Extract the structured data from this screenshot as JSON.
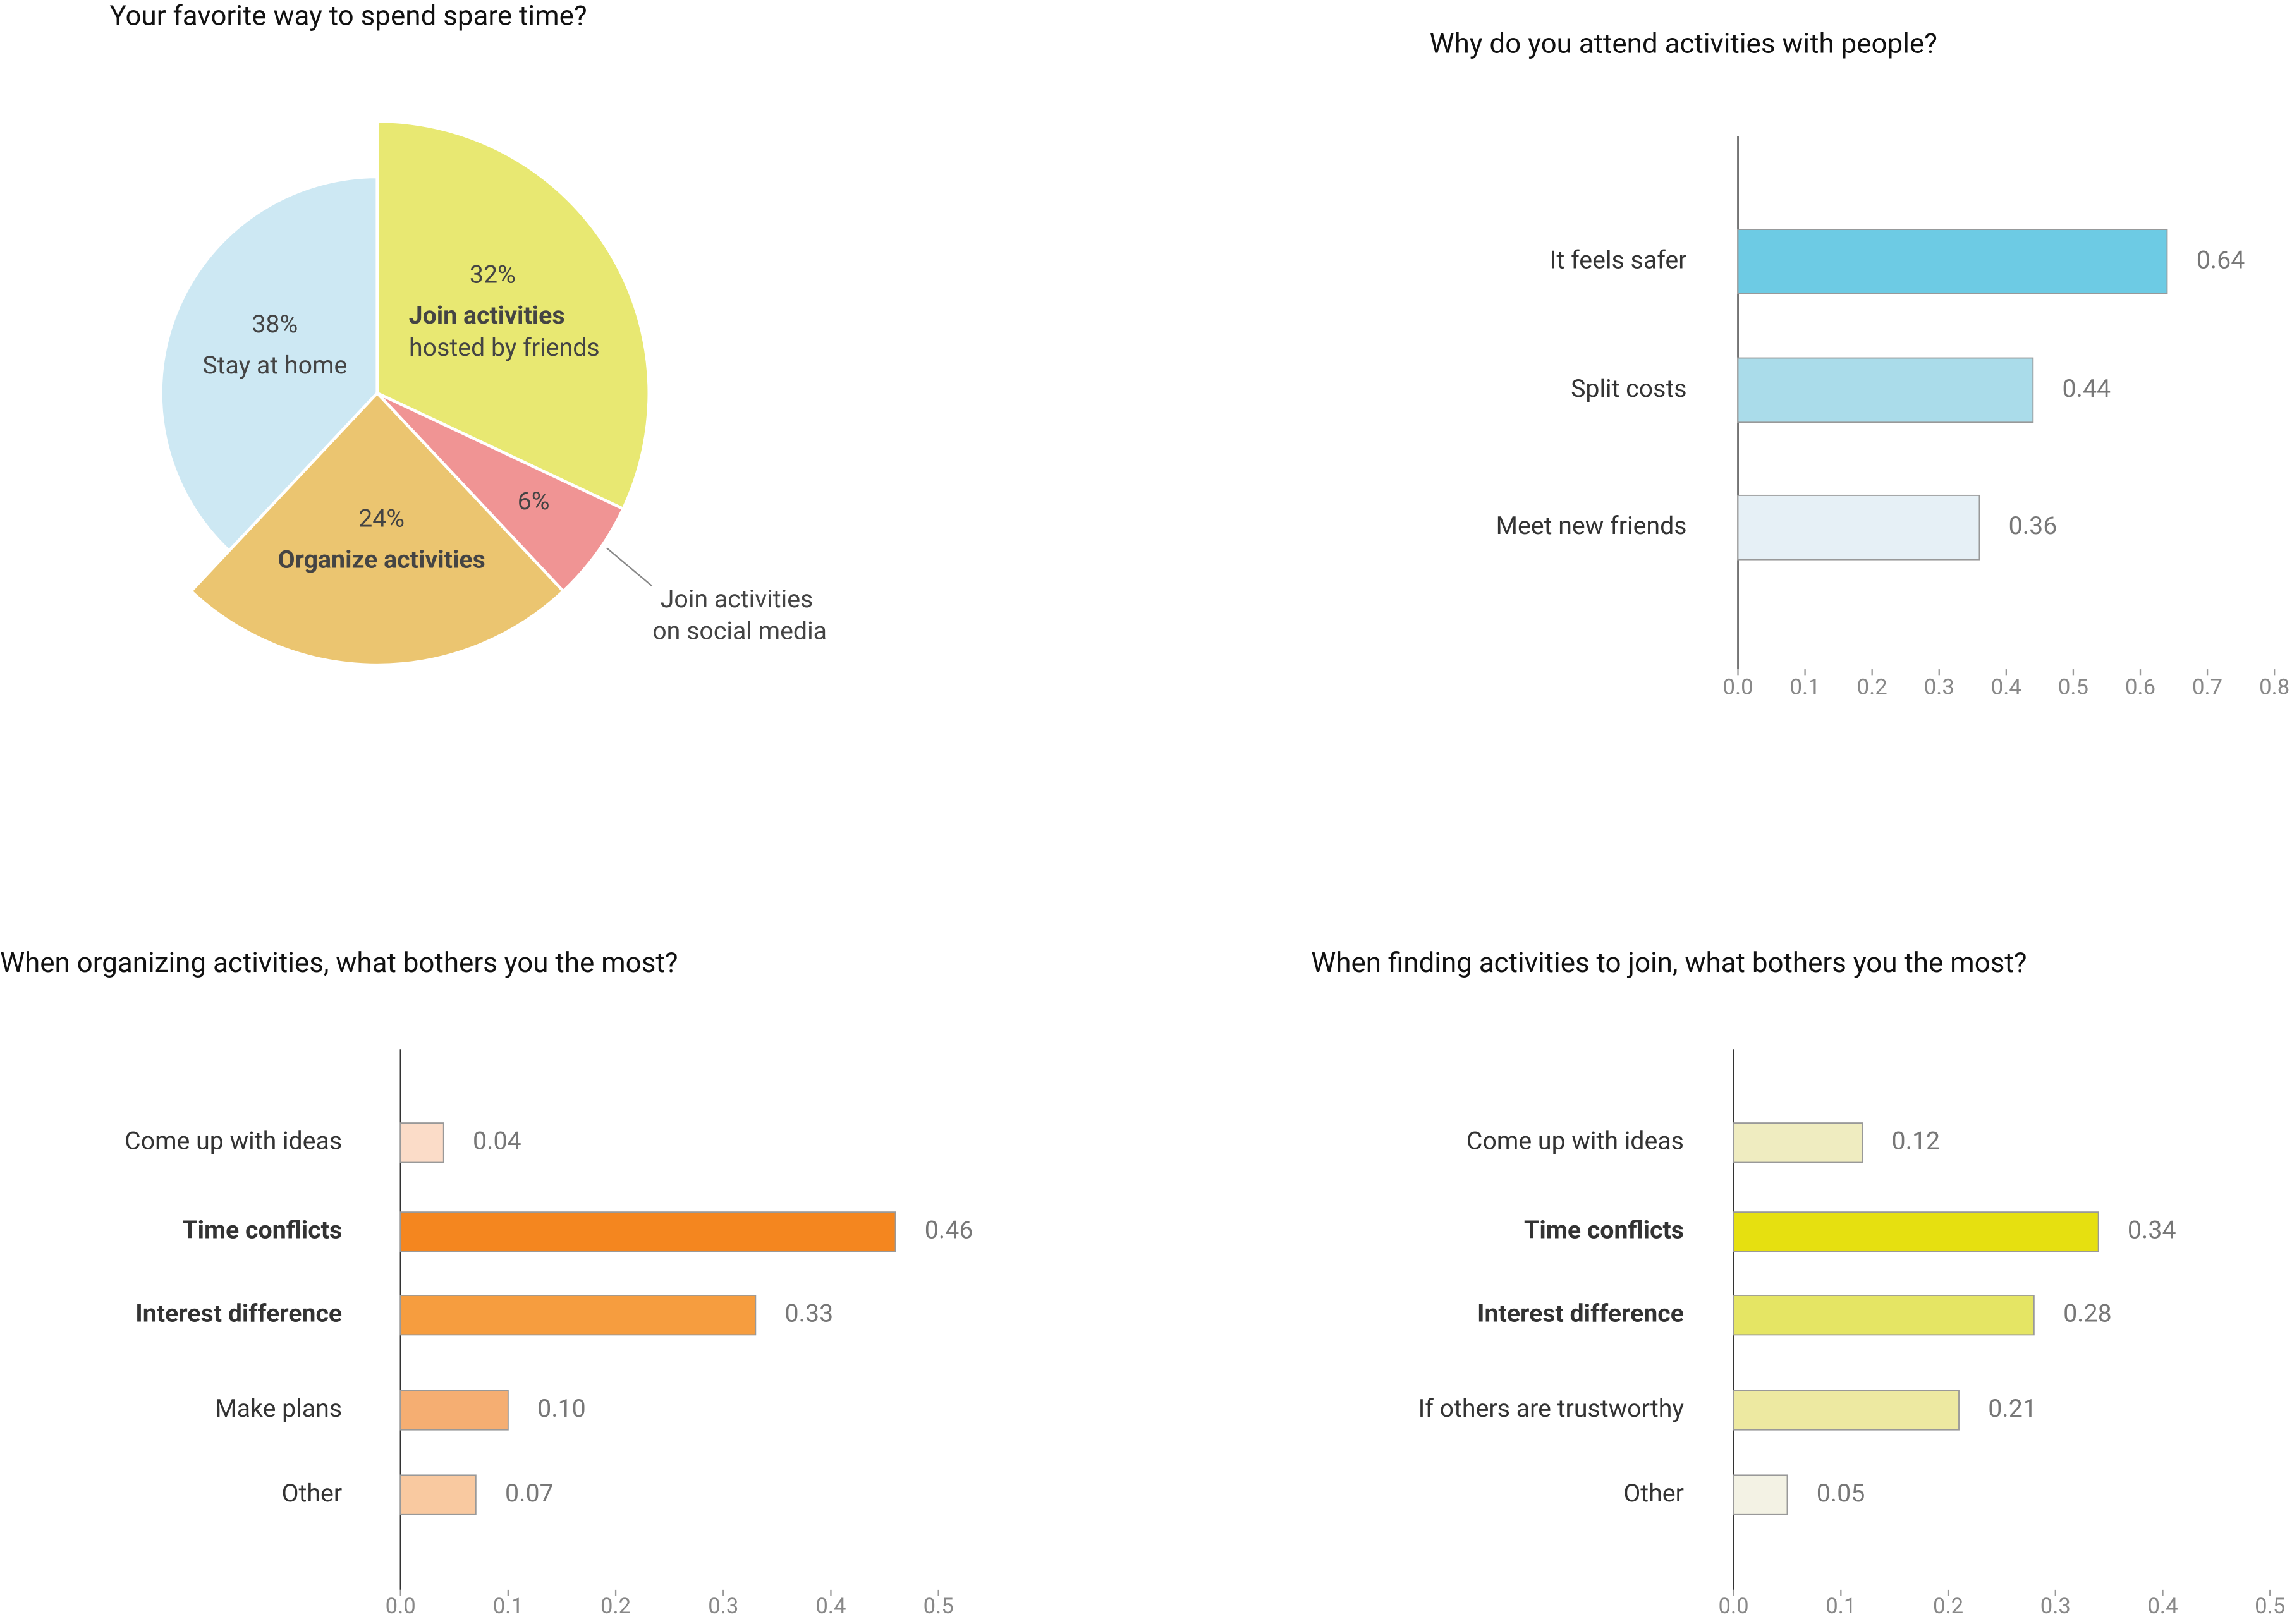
{
  "chart_data": [
    {
      "type": "pie",
      "title": "Your favorite way to spend spare time?",
      "categories": [
        [
          "Join activities",
          "hosted by friends"
        ],
        [
          "Join activities",
          "on social media"
        ],
        [
          "Organize activities"
        ],
        [
          "Stay at home"
        ]
      ],
      "values": [
        32,
        6,
        24,
        38
      ],
      "value_labels": [
        "32%",
        "6%",
        "24%",
        "38%"
      ],
      "colors": [
        "#e8e872",
        "#f09494",
        "#ebc570",
        "#cde8f3"
      ]
    },
    {
      "type": "bar",
      "orientation": "horizontal",
      "title": "Why do you attend activities with people?",
      "categories": [
        "It feels safer",
        "Split costs",
        "Meet new friends"
      ],
      "values": [
        0.64,
        0.44,
        0.36
      ],
      "colors": [
        "#6dcbe4",
        "#aadcea",
        "#e6f0f6"
      ],
      "xlim": [
        0,
        0.8
      ],
      "xticks": [
        {
          "value": 0,
          "label": "0.0"
        },
        0.1,
        0.2,
        0.3,
        0.4,
        0.5,
        0.6,
        0.7,
        0.8
      ]
    },
    {
      "type": "bar",
      "orientation": "horizontal",
      "title": "When organizing activities, what bothers you the most?",
      "categories": [
        "Come up with ideas",
        "Time conflicts",
        "Interest difference",
        "Make plans",
        "Other"
      ],
      "values": [
        0.04,
        0.46,
        0.33,
        0.1,
        0.07
      ],
      "value_labels": [
        "0.04",
        "0.46",
        "0.33",
        "0.10",
        "0.07"
      ],
      "colors": [
        "#fbdcc8",
        "#f4861f",
        "#f69d3f",
        "#f5ae72",
        "#f9c9a0"
      ],
      "xlim": [
        0,
        0.5
      ],
      "xticks": [
        {
          "value": 0,
          "label": "0.0"
        },
        0.1,
        0.2,
        0.3,
        0.4,
        0.5
      ]
    },
    {
      "type": "bar",
      "orientation": "horizontal",
      "title": "When finding activities to join, what bothers you the most?",
      "categories": [
        "Come up with ideas",
        "Time conflicts",
        "Interest difference",
        "If others are trustworthy",
        "Other"
      ],
      "values": [
        0.12,
        0.34,
        0.28,
        0.21,
        0.05
      ],
      "colors": [
        "#efecc0",
        "#e6e010",
        "#e5e564",
        "#ede9a1",
        "#f3f2e4"
      ],
      "xlim": [
        0,
        0.5
      ],
      "xticks": [
        {
          "value": 0,
          "label": "0.0"
        },
        0.1,
        0.2,
        0.3,
        0.4,
        0.5
      ]
    }
  ]
}
